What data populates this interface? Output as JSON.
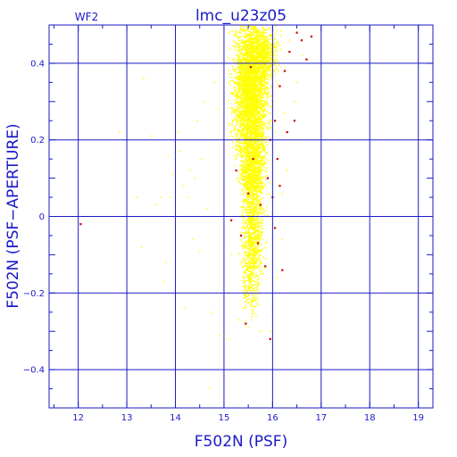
{
  "chart_data": {
    "type": "scatter",
    "title": "lmc_u23z05",
    "tag": "WF2",
    "xlabel": "F502N (PSF)",
    "ylabel": "F502N (PSF−APERTURE)",
    "xlim": [
      11.4,
      19.3
    ],
    "ylim": [
      -0.5,
      0.5
    ],
    "x_ticks": [
      12,
      13,
      14,
      15,
      16,
      17,
      18,
      19
    ],
    "y_ticks": [
      -0.4,
      -0.2,
      0,
      0.2,
      0.4
    ],
    "y_tick_labels": [
      "−0.4",
      "−0.2",
      "0",
      "0.2",
      "0.4"
    ],
    "grid": true,
    "legend": "none",
    "colors": {
      "axis": "#1a1ac8",
      "points": "#ffff00",
      "flagged": "#cc0000",
      "background": "#ffffff"
    },
    "series": [
      {
        "color": "#ffff00",
        "points": [
          [
            12.85,
            0.22
          ],
          [
            13.05,
            0.0
          ],
          [
            13.2,
            0.05
          ],
          [
            13.3,
            -0.08
          ],
          [
            13.35,
            0.36
          ],
          [
            13.5,
            0.21
          ],
          [
            13.6,
            0.03
          ],
          [
            13.7,
            0.05
          ],
          [
            13.75,
            -0.17
          ],
          [
            13.8,
            -0.12
          ],
          [
            13.85,
            0.16
          ],
          [
            13.9,
            0.05
          ],
          [
            13.95,
            0.11
          ],
          [
            14.0,
            -0.03
          ],
          [
            14.05,
            0.22
          ],
          [
            14.1,
            0.17
          ],
          [
            14.15,
            0.08
          ],
          [
            14.2,
            -0.24
          ],
          [
            14.25,
            0.05
          ],
          [
            14.3,
            0.12
          ],
          [
            14.35,
            -0.06
          ],
          [
            14.4,
            0.1
          ],
          [
            14.45,
            0.25
          ],
          [
            14.5,
            -0.09
          ],
          [
            14.55,
            0.15
          ],
          [
            14.6,
            0.3
          ],
          [
            14.65,
            0.02
          ],
          [
            14.7,
            0.2
          ],
          [
            14.75,
            -0.25
          ],
          [
            14.8,
            0.35
          ],
          [
            14.85,
            -0.2
          ],
          [
            14.9,
            0.28
          ],
          [
            14.95,
            0.4
          ],
          [
            14.9,
            -0.31
          ],
          [
            14.7,
            -0.45
          ],
          [
            15.0,
            -0.3
          ],
          [
            15.05,
            -0.32
          ],
          [
            15.1,
            -0.2
          ],
          [
            15.15,
            -0.1
          ],
          [
            15.3,
            -0.27
          ],
          [
            15.4,
            -0.24
          ],
          [
            15.5,
            -0.29
          ],
          [
            15.65,
            -0.22
          ],
          [
            15.75,
            -0.3
          ],
          [
            15.8,
            -0.15
          ],
          [
            15.85,
            -0.08
          ],
          [
            15.95,
            -0.3
          ],
          [
            16.0,
            -0.23
          ],
          [
            16.1,
            -0.16
          ],
          [
            16.2,
            -0.06
          ],
          [
            16.2,
            0.06
          ],
          [
            16.3,
            0.12
          ],
          [
            16.4,
            0.2
          ],
          [
            16.5,
            0.35
          ],
          [
            16.6,
            0.42
          ],
          [
            16.35,
            0.46
          ],
          [
            16.45,
            0.3
          ],
          [
            16.25,
            0.27
          ]
        ],
        "dense_regions": [
          {
            "x_center": 15.55,
            "x_spread": 0.28,
            "y_center": 0.33,
            "y_spread": 0.15,
            "count": 3200
          },
          {
            "x_center": 15.6,
            "x_spread": 0.2,
            "y_center": 0.12,
            "y_spread": 0.1,
            "count": 1100
          },
          {
            "x_center": 15.6,
            "x_spread": 0.17,
            "y_center": -0.05,
            "y_spread": 0.09,
            "count": 650
          },
          {
            "x_center": 15.55,
            "x_spread": 0.14,
            "y_center": -0.18,
            "y_spread": 0.06,
            "count": 180
          },
          {
            "x_center": 15.8,
            "x_spread": 0.25,
            "y_center": 0.42,
            "y_spread": 0.06,
            "count": 700
          }
        ]
      },
      {
        "color": "#cc0000",
        "points": [
          [
            12.05,
            -0.02
          ],
          [
            15.15,
            -0.01
          ],
          [
            15.25,
            0.12
          ],
          [
            15.35,
            -0.05
          ],
          [
            15.45,
            -0.28
          ],
          [
            15.5,
            0.06
          ],
          [
            15.6,
            0.15
          ],
          [
            15.7,
            -0.07
          ],
          [
            15.75,
            0.03
          ],
          [
            15.85,
            -0.13
          ],
          [
            15.9,
            0.1
          ],
          [
            15.95,
            0.2
          ],
          [
            15.95,
            -0.32
          ],
          [
            16.0,
            0.05
          ],
          [
            16.05,
            0.25
          ],
          [
            16.05,
            -0.03
          ],
          [
            16.1,
            0.15
          ],
          [
            16.15,
            0.34
          ],
          [
            16.2,
            -0.14
          ],
          [
            16.25,
            0.38
          ],
          [
            16.35,
            0.43
          ],
          [
            16.45,
            0.25
          ],
          [
            16.5,
            0.48
          ],
          [
            16.6,
            0.46
          ],
          [
            16.7,
            0.41
          ],
          [
            16.8,
            0.47
          ],
          [
            15.55,
            0.39
          ],
          [
            16.3,
            0.22
          ],
          [
            16.15,
            0.08
          ]
        ]
      }
    ]
  }
}
